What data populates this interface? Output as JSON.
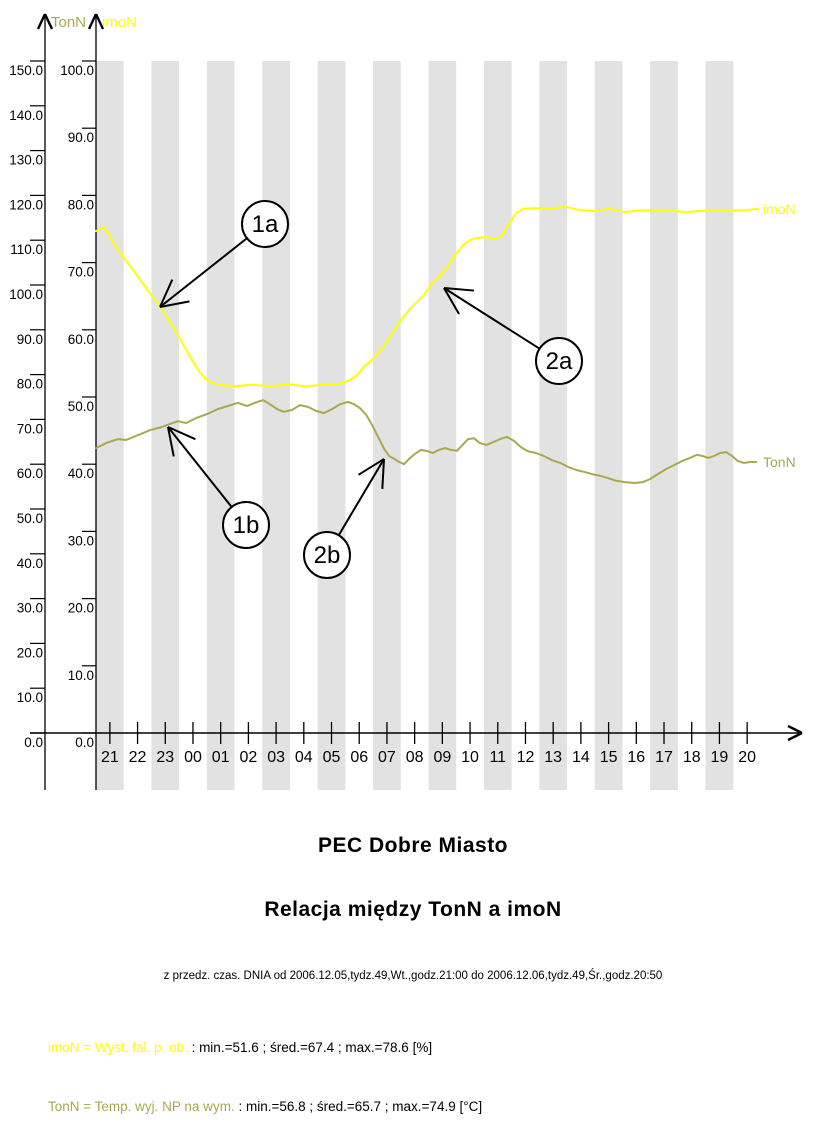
{
  "chart_data": {
    "type": "line",
    "title": "PEC Dobre Miasto",
    "subtitle": "Relacja między TonN a imoN",
    "period_note": "z przedz. czas. DNIA od 2006.12.05,tydz.49,Wt.,godz.21:00 do 2006.12.06,tydz.49,Śr.,godz.20:50",
    "band_color": "#e2e2e2",
    "x_tick_labels": [
      "21",
      "22",
      "23",
      "00",
      "01",
      "02",
      "03",
      "04",
      "05",
      "06",
      "07",
      "08",
      "09",
      "10",
      "11",
      "12",
      "13",
      "14",
      "15",
      "16",
      "17",
      "18",
      "19",
      "20"
    ],
    "axes": {
      "left_outer": {
        "label": "TonN",
        "color": "#a8a850",
        "min": 0,
        "max": 150,
        "tick_step": 10,
        "tick_labels": [
          "0.0",
          "10.0",
          "20.0",
          "30.0",
          "40.0",
          "50.0",
          "60.0",
          "70.0",
          "80.0",
          "90.0",
          "100.0",
          "110.0",
          "120.0",
          "130.0",
          "140.0",
          "150.0"
        ]
      },
      "left_inner": {
        "label": "imoN",
        "color": "#ffff00",
        "min": 0,
        "max": 100,
        "tick_step": 10,
        "tick_labels": [
          "0.0",
          "10.0",
          "20.0",
          "30.0",
          "40.0",
          "50.0",
          "60.0",
          "70.0",
          "80.0",
          "90.0",
          "100.0"
        ]
      }
    },
    "series": [
      {
        "name": "imoN",
        "axis": "left_inner",
        "color": "#ffff00",
        "end_label": "imoN",
        "points": [
          [
            0.0,
            74.7
          ],
          [
            0.29,
            75.3
          ],
          [
            0.79,
            71.9
          ],
          [
            1.34,
            68.9
          ],
          [
            1.88,
            65.8
          ],
          [
            2.42,
            62.8
          ],
          [
            2.92,
            59.5
          ],
          [
            3.39,
            56.0
          ],
          [
            3.75,
            53.6
          ],
          [
            4.04,
            52.4
          ],
          [
            4.4,
            51.8
          ],
          [
            5.02,
            51.6
          ],
          [
            5.63,
            51.8
          ],
          [
            6.28,
            51.6
          ],
          [
            6.93,
            51.9
          ],
          [
            7.54,
            51.6
          ],
          [
            8.16,
            51.8
          ],
          [
            8.73,
            51.9
          ],
          [
            9.1,
            52.4
          ],
          [
            9.38,
            53.1
          ],
          [
            9.67,
            54.5
          ],
          [
            10.0,
            55.7
          ],
          [
            10.36,
            57.4
          ],
          [
            10.68,
            59.4
          ],
          [
            10.97,
            61.3
          ],
          [
            11.26,
            62.8
          ],
          [
            11.55,
            64.0
          ],
          [
            11.84,
            65.2
          ],
          [
            12.13,
            67.0
          ],
          [
            12.42,
            68.0
          ],
          [
            12.7,
            69.5
          ],
          [
            12.99,
            71.3
          ],
          [
            13.25,
            72.6
          ],
          [
            13.5,
            73.4
          ],
          [
            13.79,
            73.7
          ],
          [
            14.11,
            73.8
          ],
          [
            14.4,
            73.5
          ],
          [
            14.65,
            74.0
          ],
          [
            14.91,
            75.7
          ],
          [
            15.16,
            77.4
          ],
          [
            15.41,
            78.0
          ],
          [
            15.84,
            78.1
          ],
          [
            16.39,
            78.0
          ],
          [
            16.93,
            78.3
          ],
          [
            17.47,
            77.8
          ],
          [
            18.01,
            77.7
          ],
          [
            18.55,
            78.0
          ],
          [
            19.09,
            77.5
          ],
          [
            19.64,
            77.8
          ],
          [
            20.18,
            77.7
          ],
          [
            20.72,
            77.8
          ],
          [
            21.26,
            77.5
          ],
          [
            21.8,
            77.7
          ],
          [
            22.34,
            77.8
          ],
          [
            22.88,
            77.7
          ],
          [
            23.42,
            77.8
          ],
          [
            23.89,
            78.0
          ]
        ]
      },
      {
        "name": "TonN",
        "axis": "left_outer",
        "color": "#a8a850",
        "end_label": "TonN",
        "points": [
          [
            0.0,
            63.6
          ],
          [
            0.36,
            64.7
          ],
          [
            0.79,
            65.6
          ],
          [
            1.08,
            65.4
          ],
          [
            1.52,
            66.5
          ],
          [
            1.95,
            67.6
          ],
          [
            2.38,
            68.3
          ],
          [
            2.67,
            69.0
          ],
          [
            2.96,
            69.6
          ],
          [
            3.25,
            69.2
          ],
          [
            3.61,
            70.3
          ],
          [
            4.01,
            71.2
          ],
          [
            4.4,
            72.3
          ],
          [
            4.76,
            73.0
          ],
          [
            5.13,
            73.7
          ],
          [
            5.45,
            73.0
          ],
          [
            5.74,
            73.7
          ],
          [
            6.03,
            74.3
          ],
          [
            6.28,
            73.4
          ],
          [
            6.53,
            72.3
          ],
          [
            6.78,
            71.7
          ],
          [
            7.07,
            72.1
          ],
          [
            7.36,
            73.2
          ],
          [
            7.65,
            72.8
          ],
          [
            7.94,
            71.9
          ],
          [
            8.23,
            71.4
          ],
          [
            8.52,
            72.3
          ],
          [
            8.81,
            73.4
          ],
          [
            9.1,
            73.9
          ],
          [
            9.31,
            73.4
          ],
          [
            9.53,
            72.5
          ],
          [
            9.75,
            71.0
          ],
          [
            9.96,
            68.8
          ],
          [
            10.18,
            66.1
          ],
          [
            10.4,
            63.4
          ],
          [
            10.58,
            61.8
          ],
          [
            10.76,
            61.2
          ],
          [
            10.94,
            60.5
          ],
          [
            11.12,
            60.0
          ],
          [
            11.3,
            61.2
          ],
          [
            11.51,
            62.3
          ],
          [
            11.73,
            63.2
          ],
          [
            11.95,
            62.9
          ],
          [
            12.16,
            62.5
          ],
          [
            12.38,
            63.2
          ],
          [
            12.6,
            63.6
          ],
          [
            12.81,
            63.2
          ],
          [
            13.03,
            63.0
          ],
          [
            13.43,
            65.6
          ],
          [
            13.64,
            65.8
          ],
          [
            13.86,
            64.7
          ],
          [
            14.08,
            64.3
          ],
          [
            14.33,
            64.9
          ],
          [
            14.58,
            65.6
          ],
          [
            14.83,
            66.1
          ],
          [
            15.09,
            65.2
          ],
          [
            15.34,
            63.8
          ],
          [
            15.59,
            62.9
          ],
          [
            15.88,
            62.5
          ],
          [
            16.17,
            61.8
          ],
          [
            16.46,
            60.9
          ],
          [
            16.75,
            60.3
          ],
          [
            17.04,
            59.4
          ],
          [
            17.33,
            58.7
          ],
          [
            17.61,
            58.3
          ],
          [
            17.9,
            57.8
          ],
          [
            18.19,
            57.4
          ],
          [
            18.48,
            56.9
          ],
          [
            18.77,
            56.3
          ],
          [
            19.09,
            56.0
          ],
          [
            19.42,
            55.8
          ],
          [
            19.74,
            56.0
          ],
          [
            20.0,
            56.7
          ],
          [
            20.28,
            57.8
          ],
          [
            20.57,
            58.9
          ],
          [
            20.86,
            59.8
          ],
          [
            21.15,
            60.7
          ],
          [
            21.44,
            61.4
          ],
          [
            21.69,
            62.1
          ],
          [
            21.91,
            61.8
          ],
          [
            22.09,
            61.4
          ],
          [
            22.3,
            61.8
          ],
          [
            22.52,
            62.5
          ],
          [
            22.74,
            62.7
          ],
          [
            22.96,
            61.8
          ],
          [
            23.17,
            60.7
          ],
          [
            23.39,
            60.3
          ],
          [
            23.61,
            60.5
          ],
          [
            23.83,
            60.5
          ]
        ]
      }
    ],
    "annotations": [
      {
        "label": "1a",
        "circle": [
          265,
          224
        ],
        "tip": [
          160,
          307
        ]
      },
      {
        "label": "2a",
        "circle": [
          559,
          361
        ],
        "tip": [
          444,
          288
        ]
      },
      {
        "label": "1b",
        "circle": [
          246,
          525
        ],
        "tip": [
          168,
          427
        ]
      },
      {
        "label": "2b",
        "circle": [
          327,
          555
        ],
        "tip": [
          384,
          459
        ]
      }
    ],
    "legend": [
      {
        "name": "imoN",
        "color": "#ffff00",
        "desc": "imoN = Wyst. fal. p. ob.",
        "stats": " : min.=51.6 ; śred.=67.4 ; max.=78.6 [%]"
      },
      {
        "name": "TonN",
        "color": "#a8a850",
        "desc": "TonN = Temp. wyj. NP na wym.",
        "stats": " : min.=56.8 ; śred.=65.7 ; max.=74.9 [°C]"
      }
    ]
  }
}
